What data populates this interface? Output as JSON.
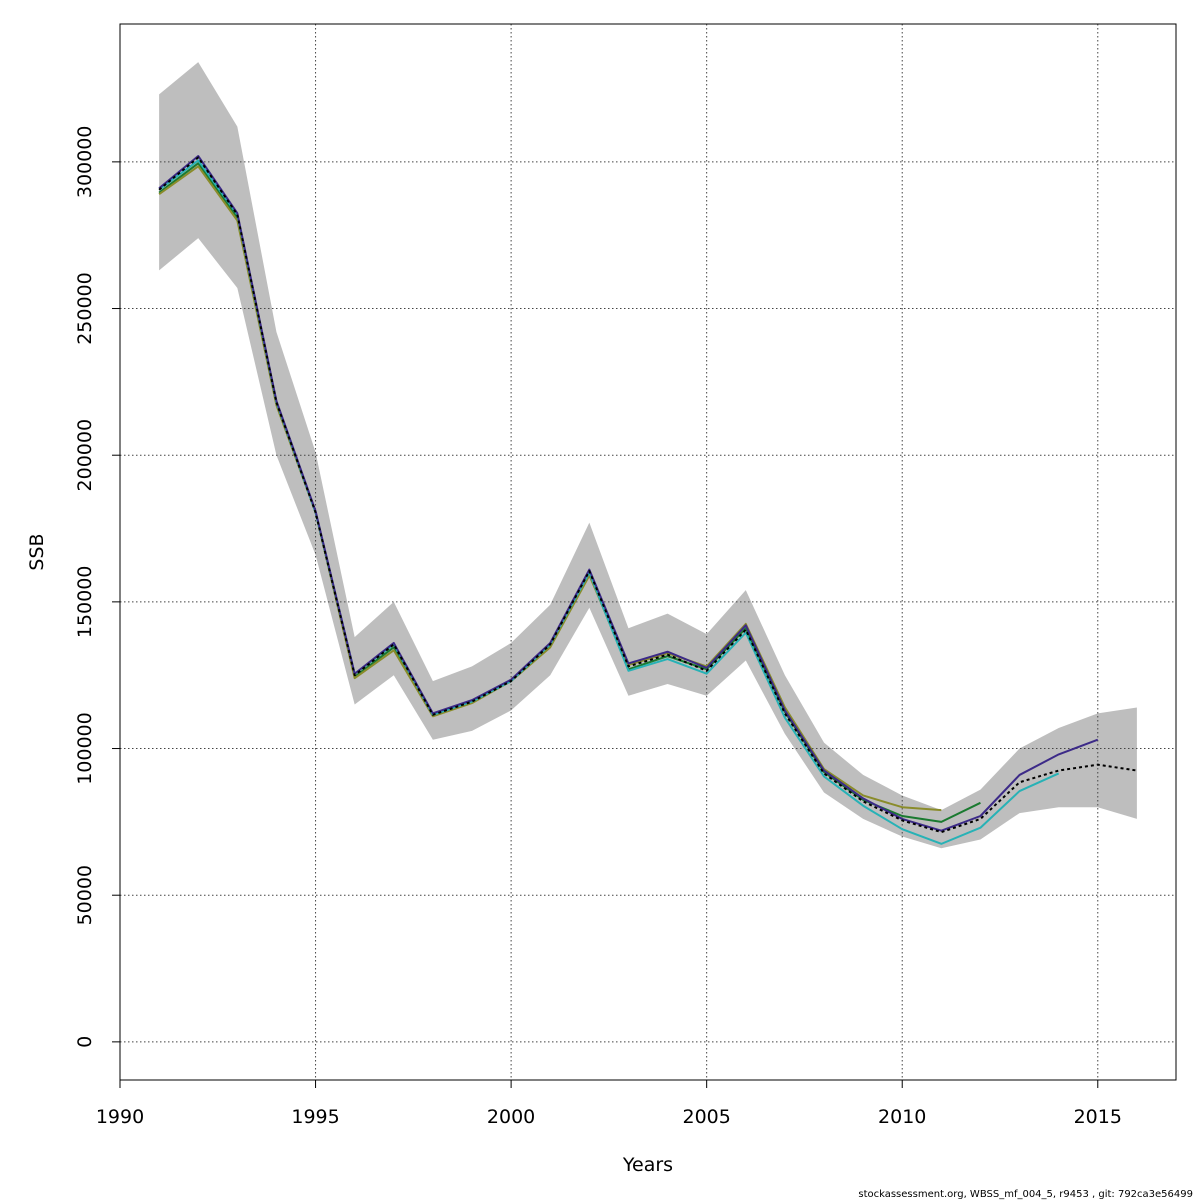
{
  "chart_data": {
    "type": "line",
    "title": "",
    "xlabel": "Years",
    "ylabel": "SSB",
    "xlim": [
      1990,
      2017
    ],
    "ylim": [
      -13000,
      347000
    ],
    "xticks": [
      1990,
      1995,
      2000,
      2005,
      2010,
      2015
    ],
    "yticks": [
      0,
      50000,
      100000,
      150000,
      200000,
      250000,
      300000
    ],
    "grid": true,
    "legend": "none",
    "band": {
      "x": [
        1991,
        1992,
        1993,
        1994,
        1995,
        1996,
        1997,
        1998,
        1999,
        2000,
        2001,
        2002,
        2003,
        2004,
        2005,
        2006,
        2007,
        2008,
        2009,
        2010,
        2011,
        2012,
        2013,
        2014,
        2015,
        2016
      ],
      "lower": [
        263000,
        274000,
        257000,
        200000,
        166000,
        115000,
        125000,
        103000,
        106000,
        113000,
        125000,
        148000,
        118000,
        122000,
        118000,
        130000,
        105000,
        85000,
        76000,
        70000,
        66000,
        69000,
        78000,
        80000,
        80000,
        76000
      ],
      "upper": [
        323000,
        334000,
        312000,
        242000,
        201000,
        138000,
        150000,
        123000,
        128000,
        136000,
        149000,
        177000,
        141000,
        146000,
        139000,
        154000,
        125000,
        102000,
        91000,
        84000,
        79000,
        86000,
        100000,
        107000,
        112000,
        114000
      ],
      "color": "#bebebe"
    },
    "series": [
      {
        "color": "#1a7a30",
        "dash": false,
        "x": [
          1991,
          1992,
          1993,
          1994,
          1995,
          1996,
          1997,
          1998,
          1999,
          2000,
          2001,
          2002,
          2003,
          2004,
          2005,
          2006,
          2007,
          2008,
          2009,
          2010,
          2011,
          2012
        ],
        "values": [
          289500,
          299500,
          281000,
          217500,
          180500,
          124500,
          134500,
          111500,
          116000,
          123000,
          135000,
          159500,
          127000,
          131500,
          127000,
          141000,
          112500,
          92000,
          82500,
          77000,
          75000,
          81500
        ]
      },
      {
        "color": "#8a8c2a",
        "dash": false,
        "x": [
          1991,
          1992,
          1993,
          1994,
          1995,
          1996,
          1997,
          1998,
          1999,
          2000,
          2001,
          2002,
          2003,
          2004,
          2005,
          2006,
          2007,
          2008,
          2009,
          2010,
          2011
        ],
        "values": [
          289000,
          298500,
          280000,
          217000,
          180500,
          124000,
          133500,
          111000,
          115500,
          123000,
          134500,
          159000,
          128500,
          132500,
          128000,
          142500,
          114000,
          93000,
          84000,
          80000,
          79000
        ]
      },
      {
        "color": "#27b2b6",
        "dash": false,
        "x": [
          1991,
          1992,
          1993,
          1994,
          1995,
          1996,
          1997,
          1998,
          1999,
          2000,
          2001,
          2002,
          2003,
          2004,
          2005,
          2006,
          2007,
          2008,
          2009,
          2010,
          2011,
          2012,
          2013,
          2014
        ],
        "values": [
          290500,
          300500,
          282000,
          218000,
          180500,
          125500,
          135500,
          111500,
          116000,
          123000,
          135500,
          160000,
          126500,
          130500,
          125500,
          139500,
          110500,
          90500,
          80500,
          72500,
          67500,
          73000,
          85500,
          91500
        ]
      },
      {
        "color": "#3c2a88",
        "dash": false,
        "x": [
          1991,
          1992,
          1993,
          1994,
          1995,
          1996,
          1997,
          1998,
          1999,
          2000,
          2001,
          2002,
          2003,
          2004,
          2005,
          2006,
          2007,
          2008,
          2009,
          2010,
          2011,
          2012,
          2013,
          2014,
          2015
        ],
        "values": [
          291000,
          302000,
          282500,
          218500,
          181000,
          125500,
          136000,
          112000,
          116500,
          123500,
          136000,
          161000,
          129000,
          133000,
          127500,
          142000,
          113000,
          92500,
          83000,
          76000,
          72000,
          77000,
          91000,
          98000,
          103000
        ]
      },
      {
        "color": "#000000",
        "dash": true,
        "x": [
          1991,
          1992,
          1993,
          1994,
          1995,
          1996,
          1997,
          1998,
          1999,
          2000,
          2001,
          2002,
          2003,
          2004,
          2005,
          2006,
          2007,
          2008,
          2009,
          2010,
          2011,
          2012,
          2013,
          2014,
          2015,
          2016
        ],
        "values": [
          290500,
          301500,
          282000,
          218000,
          180500,
          125000,
          135500,
          111500,
          116000,
          123000,
          135500,
          160500,
          128000,
          132000,
          126500,
          140500,
          112000,
          91500,
          82000,
          75500,
          71500,
          76000,
          88500,
          92500,
          94500,
          92500
        ]
      }
    ]
  },
  "footer": "stockassessment.org, WBSS_mf_004_5, r9453 , git: 792ca3e56499"
}
